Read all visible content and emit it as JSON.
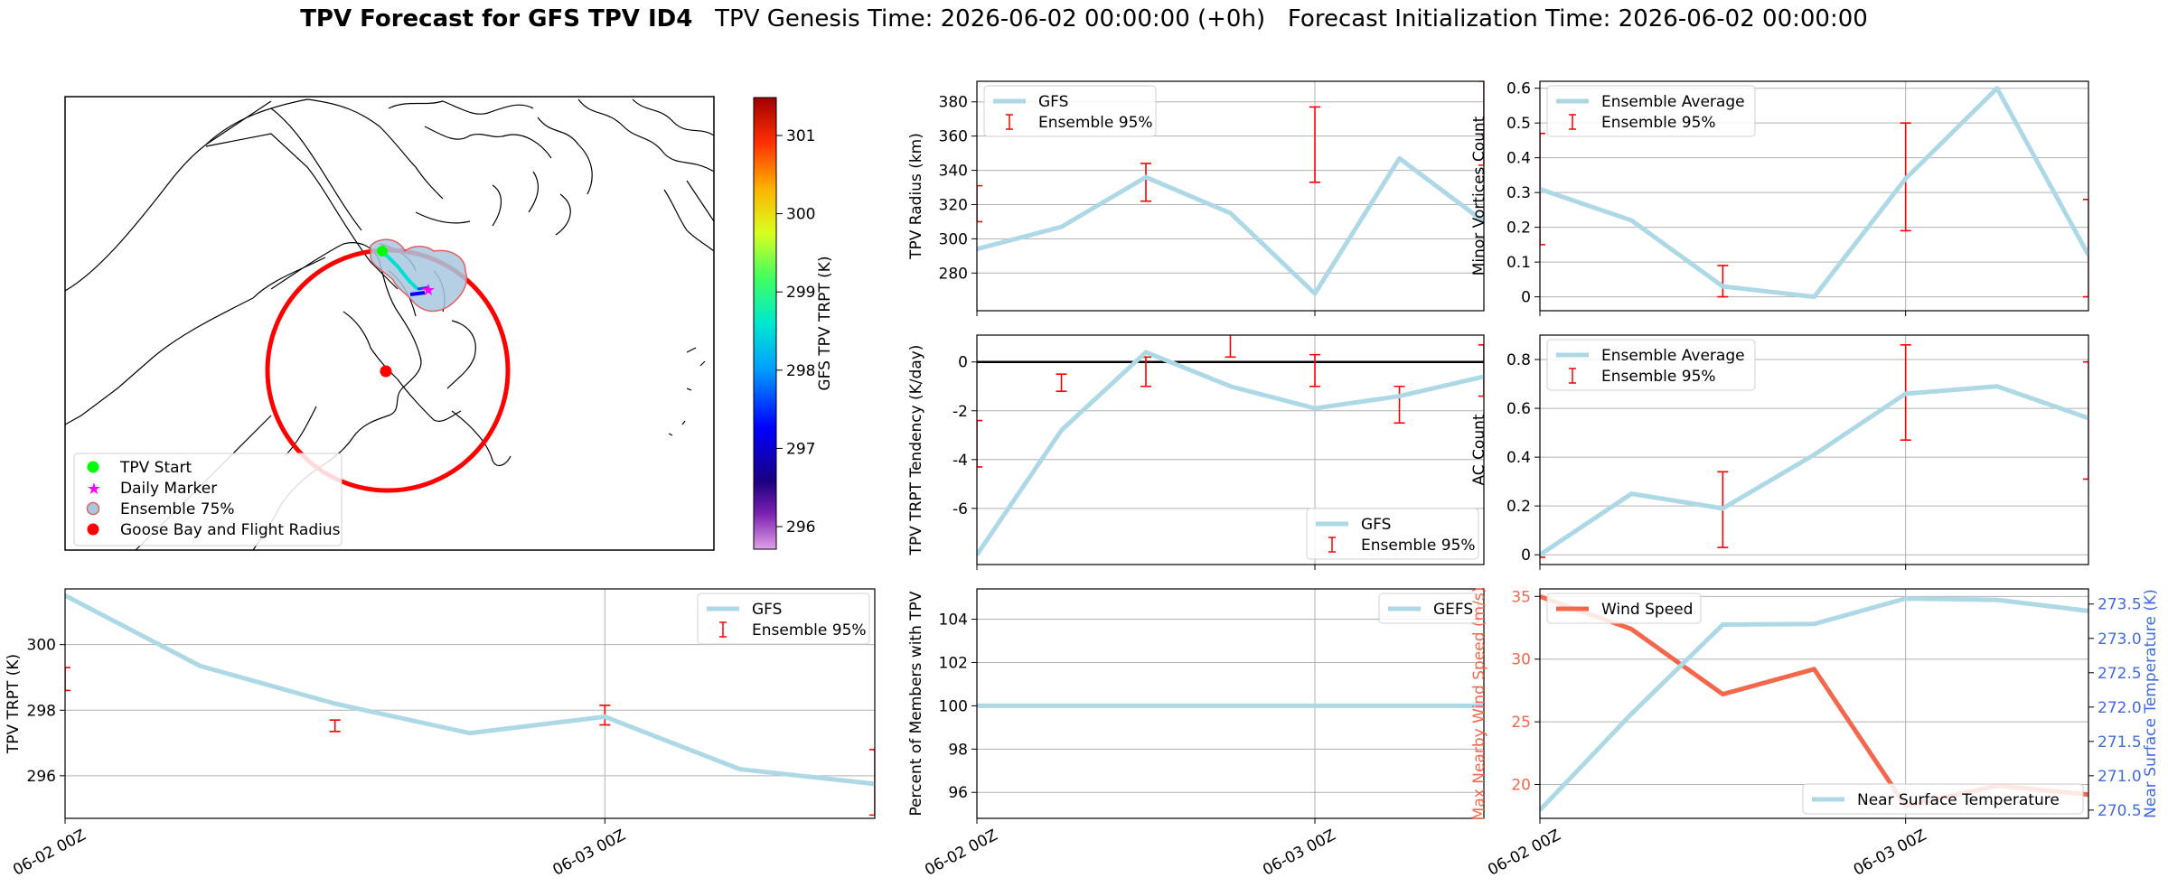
{
  "title": {
    "bold": "TPV Forecast for GFS TPV ID4",
    "genesis": "TPV Genesis Time: 2026-06-02 00:00:00 (+0h)",
    "init": "Forecast Initialization Time: 2026-06-02 00:00:00"
  },
  "colors": {
    "line": "#add8e6",
    "error": "#ff0000",
    "wind": "#f4674a",
    "temp_axis": "#4169e1",
    "grid": "#b0b0b0"
  },
  "map": {
    "colorbar_label": "GFS TPV TRPT (K)",
    "colorbar_ticks": [
      "301",
      "300",
      "299",
      "298",
      "297",
      "296"
    ],
    "legend": [
      {
        "label": "TPV Start",
        "icon": "green-dot"
      },
      {
        "label": "Daily Marker",
        "icon": "magenta-star"
      },
      {
        "label": "Ensemble 75%",
        "icon": "blue-patch"
      },
      {
        "label": "Goose Bay and Flight Radius",
        "icon": "red-dot"
      }
    ]
  },
  "chart_data": [
    {
      "id": "trpt",
      "type": "line",
      "ylabel": "TPV TRPT (K)",
      "x_ticks": [
        "06-02 00Z",
        "06-03 00Z"
      ],
      "ylim": [
        294.7,
        301.7
      ],
      "y_ticks": [
        296,
        298,
        300
      ],
      "x": [
        0,
        0.25,
        0.5,
        0.75,
        1.0,
        1.25,
        1.5
      ],
      "series": [
        {
          "name": "GFS",
          "values": [
            301.5,
            299.35,
            298.2,
            297.3,
            297.8,
            296.2,
            295.75
          ]
        }
      ],
      "error_bars": {
        "name": "Ensemble 95%",
        "x": [
          0,
          0.5,
          1.0,
          1.5
        ],
        "low": [
          298.6,
          297.35,
          297.55,
          294.8
        ],
        "high": [
          299.3,
          297.7,
          298.15,
          296.8
        ]
      },
      "legend": "top-right"
    },
    {
      "id": "radius",
      "type": "line",
      "ylabel": "TPV Radius (km)",
      "x_ticks": [],
      "ylim": [
        258,
        392
      ],
      "y_ticks": [
        280,
        300,
        320,
        340,
        360,
        380
      ],
      "x": [
        0,
        0.25,
        0.5,
        0.75,
        1.0,
        1.25,
        1.5
      ],
      "series": [
        {
          "name": "GFS",
          "values": [
            294,
            307,
            336,
            315,
            268,
            347,
            310
          ]
        }
      ],
      "error_bars": {
        "name": "Ensemble 95%",
        "x": [
          0,
          0.5,
          1.0,
          1.5
        ],
        "low": [
          310,
          322,
          333,
          343
        ],
        "high": [
          331,
          344,
          377,
          392
        ]
      },
      "legend": "top-left"
    },
    {
      "id": "tendency",
      "type": "line",
      "ylabel": "TPV TRPT Tendency (K/day)",
      "x_ticks": [],
      "ylim": [
        -8.3,
        1.1
      ],
      "y_ticks": [
        -6,
        -4,
        -2,
        0
      ],
      "x": [
        0,
        0.25,
        0.5,
        0.75,
        1.0,
        1.25,
        1.5
      ],
      "series": [
        {
          "name": "GFS",
          "values": [
            -7.9,
            -2.8,
            0.4,
            -1.0,
            -1.9,
            -1.4,
            -0.6
          ]
        }
      ],
      "error_bars": {
        "name": "Ensemble 95%",
        "x": [
          0,
          0.25,
          0.5,
          0.75,
          1.0,
          1.25,
          1.5
        ],
        "low": [
          -4.3,
          -1.2,
          -1.0,
          0.2,
          -1.0,
          -2.5,
          -1.4
        ],
        "high": [
          -2.4,
          -0.5,
          0.2,
          1.4,
          0.3,
          -1.0,
          0.7
        ]
      },
      "zero_line": true,
      "legend": "bottom-right"
    },
    {
      "id": "percent",
      "type": "line",
      "ylabel": "Percent of Members with TPV",
      "x_ticks": [
        "06-02 00Z",
        "06-03 00Z"
      ],
      "ylim": [
        94.8,
        105.4
      ],
      "y_ticks": [
        96,
        98,
        100,
        102,
        104
      ],
      "x": [
        0,
        1.5
      ],
      "series": [
        {
          "name": "GEFS",
          "values": [
            100,
            100
          ]
        }
      ],
      "legend": "top-right"
    },
    {
      "id": "minor",
      "type": "line",
      "ylabel": "Minor Vortices Count",
      "x_ticks": [],
      "ylim": [
        -0.04,
        0.62
      ],
      "y_ticks": [
        0.0,
        0.1,
        0.2,
        0.3,
        0.4,
        0.5,
        0.6
      ],
      "x": [
        0,
        0.25,
        0.5,
        0.75,
        1.0,
        1.25,
        1.5
      ],
      "series": [
        {
          "name": "Ensemble Average",
          "values": [
            0.31,
            0.22,
            0.03,
            0.0,
            0.34,
            0.6,
            0.12
          ]
        }
      ],
      "error_bars": {
        "name": "Ensemble 95%",
        "x": [
          0,
          0.5,
          1.0,
          1.5
        ],
        "low": [
          0.15,
          0.0,
          0.19,
          0.0
        ],
        "high": [
          0.47,
          0.09,
          0.5,
          0.28
        ]
      },
      "legend": "top-left"
    },
    {
      "id": "ac",
      "type": "line",
      "ylabel": "AC Count",
      "x_ticks": [],
      "ylim": [
        -0.04,
        0.9
      ],
      "y_ticks": [
        0.0,
        0.2,
        0.4,
        0.6,
        0.8
      ],
      "x": [
        0,
        0.25,
        0.5,
        0.75,
        1.0,
        1.25,
        1.5
      ],
      "series": [
        {
          "name": "Ensemble Average",
          "values": [
            0.0,
            0.25,
            0.19,
            0.41,
            0.66,
            0.69,
            0.56
          ]
        }
      ],
      "error_bars": {
        "name": "Ensemble 95%",
        "x": [
          0,
          0.5,
          1.0,
          1.5
        ],
        "low": [
          -0.01,
          0.03,
          0.47,
          0.31
        ],
        "high": [
          0.01,
          0.34,
          0.86,
          0.79
        ]
      },
      "legend": "top-left"
    },
    {
      "id": "wind_temp",
      "type": "line",
      "ylabel": "Max Nearby Wind Speed (m/s)",
      "ylabel_right": "Near Surface Temperature (K)",
      "x_ticks": [
        "06-02 00Z",
        "06-03 00Z"
      ],
      "ylim": [
        17.3,
        35.6
      ],
      "y_ticks": [
        20,
        25,
        30,
        35
      ],
      "ylim_right": [
        270.38,
        273.72
      ],
      "y_ticks_right": [
        270.5,
        271.0,
        271.5,
        272.0,
        272.5,
        273.0,
        273.5
      ],
      "x": [
        0,
        0.25,
        0.5,
        0.75,
        1.0,
        1.25,
        1.5
      ],
      "series": [
        {
          "name": "Wind Speed",
          "values": [
            35.0,
            32.4,
            27.2,
            29.2,
            18.3,
            19.9,
            19.2
          ],
          "axis": "left"
        },
        {
          "name": "Near Surface Temperature",
          "values": [
            270.5,
            271.9,
            273.2,
            273.21,
            273.58,
            273.56,
            273.4
          ],
          "axis": "right"
        }
      ],
      "legend": [
        "top-left",
        "bottom-right"
      ]
    }
  ]
}
